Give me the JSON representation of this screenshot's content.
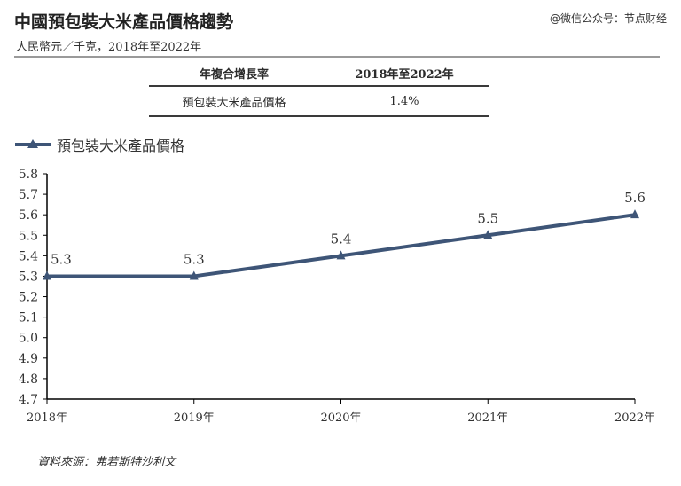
{
  "header": {
    "title": "中國預包裝大米產品價格趨勢",
    "subtitle": "人民幣元／千克，2018年至2022年",
    "watermark": "@微信公众号：节点财经"
  },
  "cagr_table": {
    "header_left": "年複合增長率",
    "header_right": "2018年至2022年",
    "row_label": "預包裝大米產品價格",
    "row_value": "1.4%"
  },
  "source": "資料來源：弗若斯特沙利文",
  "colors": {
    "series": "#3e5577",
    "axis": "#000000"
  },
  "chart_data": {
    "type": "line",
    "title": "中國預包裝大米產品價格趨勢",
    "categories": [
      "2018年",
      "2019年",
      "2020年",
      "2021年",
      "2022年"
    ],
    "series": [
      {
        "name": "預包裝大米產品價格",
        "values": [
          5.3,
          5.3,
          5.4,
          5.5,
          5.6
        ]
      }
    ],
    "data_labels": [
      "5.3",
      "5.3",
      "5.4",
      "5.5",
      "5.6"
    ],
    "ylim": [
      4.7,
      5.8
    ],
    "yticks": [
      "4.7",
      "4.8",
      "4.9",
      "5.0",
      "5.1",
      "5.2",
      "5.3",
      "5.4",
      "5.5",
      "5.6",
      "5.7",
      "5.8"
    ],
    "grid": false,
    "legend": "top-left",
    "marker": "triangle"
  }
}
